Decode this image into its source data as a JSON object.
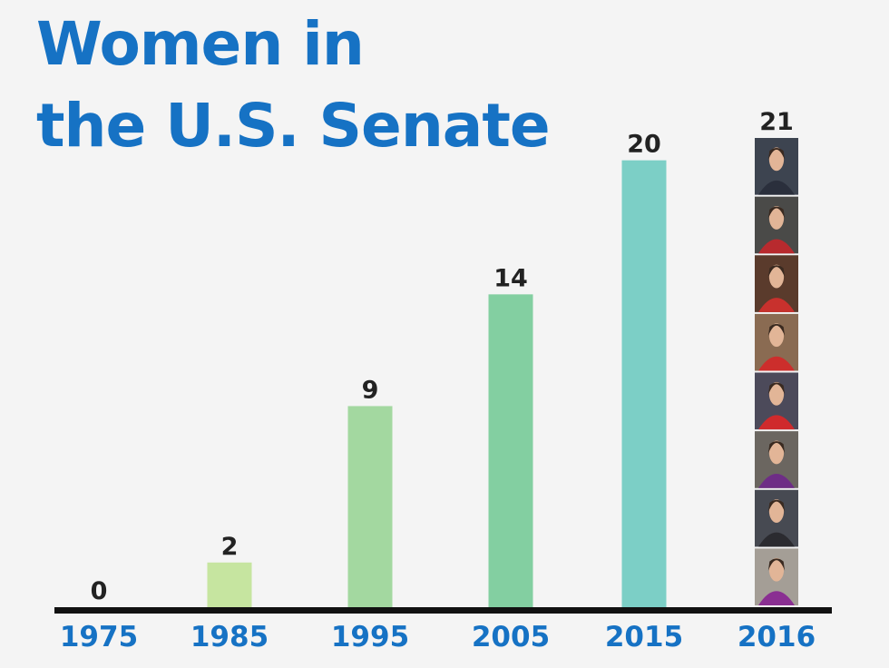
{
  "title_lines": [
    "Women in",
    "the U.S. Senate"
  ],
  "colors": {
    "title": "#1672c4",
    "axis_labels": "#1672c4",
    "value_labels": "#222222",
    "axis_line": "#111111",
    "background": "#f4f4f4",
    "bars": [
      "#d6eba6",
      "#c6e5a0",
      "#a3d8a0",
      "#83cfa1",
      "#7ccfc6",
      "#6d3a7a"
    ]
  },
  "portrait_column": {
    "count": 8,
    "icon": "senator-portrait-icon",
    "backgrounds": [
      "#3d4450",
      "#4a4a48",
      "#5a3b2c",
      "#8a6b52",
      "#4c4a5a",
      "#6b6660",
      "#474a52",
      "#a49e96"
    ],
    "clothing": [
      "#2a2f3c",
      "#b82a2e",
      "#c8312d",
      "#cc2e2c",
      "#cf2a2c",
      "#6e2d86",
      "#2b2b30",
      "#8a2f92"
    ]
  },
  "chart_data": {
    "type": "bar",
    "title": "Women in the U.S. Senate",
    "categories": [
      "1975",
      "1985",
      "1995",
      "2005",
      "2015",
      "2016"
    ],
    "values": [
      0,
      2,
      9,
      14,
      20,
      21
    ],
    "data_labels": [
      "0",
      "2",
      "9",
      "14",
      "20",
      "21"
    ],
    "xlabel": "",
    "ylabel": "",
    "ylim": [
      0,
      21
    ],
    "grid": false,
    "legend": "none"
  }
}
